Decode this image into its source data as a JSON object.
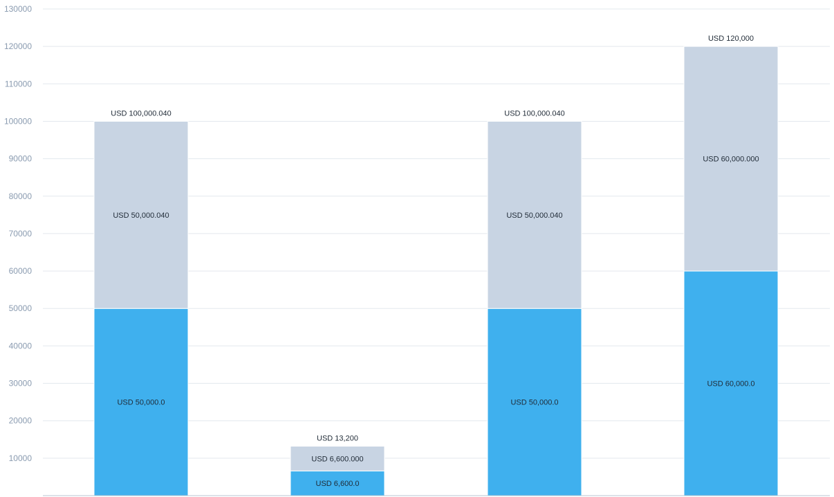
{
  "chart_data": {
    "type": "bar",
    "stacked": true,
    "categories": [
      "",
      "",
      "",
      ""
    ],
    "series": [
      {
        "values": [
          50000,
          6600,
          50000,
          60000
        ],
        "labels": [
          "USD 50,000.0",
          "USD 6,600.0",
          "USD 50,000.0",
          "USD 60,000.0"
        ],
        "color": "#3fb0ee"
      },
      {
        "values": [
          50000.04,
          6600,
          50000.04,
          60000
        ],
        "labels": [
          "USD 50,000.040",
          "USD 6,600.000",
          "USD 50,000.040",
          "USD 60,000.000"
        ],
        "color": "#c8d4e3"
      }
    ],
    "totals": [
      "USD 100,000.040",
      "USD 13,200",
      "USD 100,000.040",
      "USD 120,000"
    ],
    "title": "",
    "xlabel": "",
    "ylabel": "",
    "ylim": [
      0,
      130000
    ],
    "yticks": [
      "10000",
      "20000",
      "30000",
      "40000",
      "50000",
      "60000",
      "70000",
      "80000",
      "90000",
      "100000",
      "110000",
      "120000",
      "130000"
    ],
    "grid": true,
    "legend": "none",
    "colors": {
      "grid": "#e3e8ee",
      "axis": "#b9c6d3",
      "tick_text": "#8a9bb0",
      "label_text": "#1f2a36"
    }
  }
}
